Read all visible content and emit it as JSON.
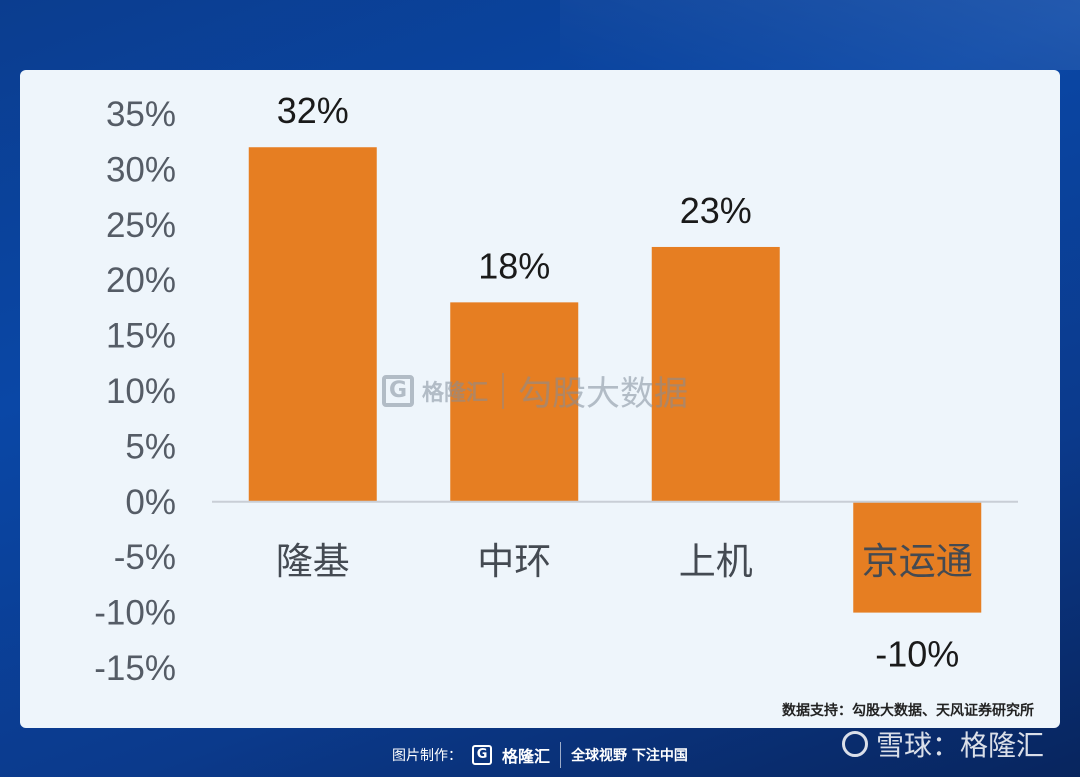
{
  "chart_data": {
    "type": "bar",
    "categories": [
      "隆基",
      "中环",
      "上机",
      "京运通"
    ],
    "values": [
      32,
      18,
      23,
      -10
    ],
    "data_labels": [
      "32%",
      "18%",
      "23%",
      "-10%"
    ],
    "y_ticks": [
      "35%",
      "30%",
      "25%",
      "20%",
      "15%",
      "10%",
      "5%",
      "0%",
      "-5%",
      "-10%",
      "-15%"
    ],
    "ylim": [
      -15,
      35
    ],
    "bar_color": "#e67e22",
    "grid": false
  },
  "watermark": {
    "logo_letter": "G",
    "brand": "格隆汇",
    "name": "勾股大数据"
  },
  "source": "数据支持：勾股大数据、天风证券研究所",
  "footer": {
    "label": "图片制作：",
    "logo_letter": "G",
    "brand": "格隆汇",
    "slogan": "全球视野 下注中国"
  },
  "snowball": {
    "text": "雪球：格隆汇"
  }
}
